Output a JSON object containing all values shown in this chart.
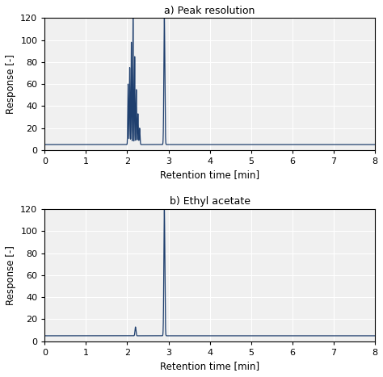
{
  "title_a": "a) Peak resolution",
  "title_b": "b) Ethyl acetate",
  "xlabel": "Retention time [min]",
  "ylabel": "Response [-]",
  "xlim": [
    0,
    8
  ],
  "ylim": [
    0,
    120
  ],
  "yticks": [
    0,
    20,
    40,
    60,
    80,
    100,
    120
  ],
  "xticks": [
    0,
    1,
    2,
    3,
    4,
    5,
    6,
    7,
    8
  ],
  "line_color": "#1f3f6e",
  "baseline": 5.0,
  "fig_width": 4.74,
  "fig_height": 4.67,
  "dpi": 100,
  "background_color": "#f0f0f0",
  "grid_color": "#ffffff"
}
